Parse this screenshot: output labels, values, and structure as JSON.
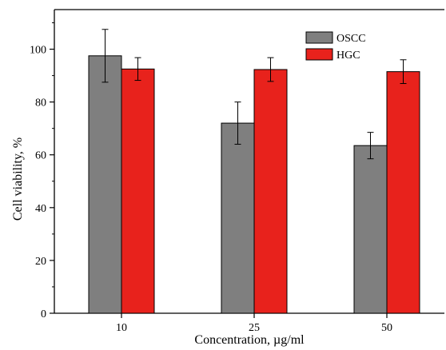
{
  "chart_data": {
    "type": "bar",
    "categories": [
      "10",
      "25",
      "50"
    ],
    "series": [
      {
        "name": "OSCC",
        "values": [
          97.5,
          72,
          63.5
        ],
        "errors": [
          10,
          8,
          5
        ],
        "color": "#7f7f7f"
      },
      {
        "name": "HGC",
        "values": [
          92.5,
          92.3,
          91.5
        ],
        "errors": [
          4.3,
          4.5,
          4.5
        ],
        "color": "#e8221c"
      }
    ],
    "xlabel": "Concentration, µg/ml",
    "ylabel": "Cell viability, %",
    "ylim": [
      0,
      115
    ],
    "yticks": [
      0,
      20,
      40,
      60,
      80,
      100
    ],
    "grid": false,
    "legend": "top-right"
  }
}
